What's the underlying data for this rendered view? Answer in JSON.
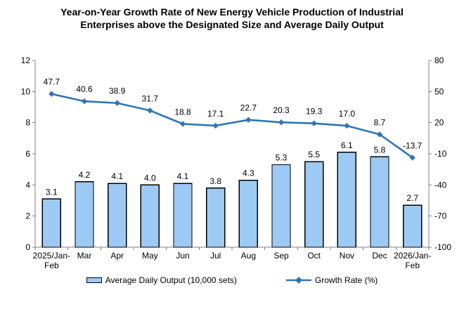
{
  "chart_data": {
    "type": "bar",
    "title": "Year-on-Year Growth Rate of New Energy Vehicle Production of Industrial Enterprises above the Designated Size and Average Daily Output",
    "categories": [
      "2025/Jan-Feb",
      "Mar",
      "Apr",
      "May",
      "Jun",
      "Jul",
      "Aug",
      "Sep",
      "Oct",
      "Nov",
      "Dec",
      "2026/Jan-Feb"
    ],
    "series": [
      {
        "name": "Average Daily Output (10,000 sets)",
        "type": "bar",
        "axis": "left",
        "values": [
          3.1,
          4.2,
          4.1,
          4.0,
          4.1,
          3.8,
          4.3,
          5.3,
          5.5,
          6.1,
          5.8,
          2.7
        ],
        "fill": "#9CCAF4",
        "stroke": "#000000"
      },
      {
        "name": "Growth Rate (%)",
        "type": "line",
        "axis": "right",
        "values": [
          47.7,
          40.6,
          38.9,
          31.7,
          18.8,
          17.1,
          22.7,
          20.3,
          19.3,
          17.0,
          8.7,
          -13.7
        ],
        "color": "#2E75B6"
      }
    ],
    "left_axis": {
      "min": 0,
      "max": 12,
      "ticks": [
        0,
        2,
        4,
        6,
        8,
        10,
        12
      ]
    },
    "right_axis": {
      "min": -100,
      "max": 80,
      "ticks": [
        -100,
        -70,
        -40,
        -10,
        20,
        50,
        80
      ]
    },
    "axis_color": "#808080",
    "grid": false,
    "legend_position": "bottom",
    "data_labels": true
  }
}
